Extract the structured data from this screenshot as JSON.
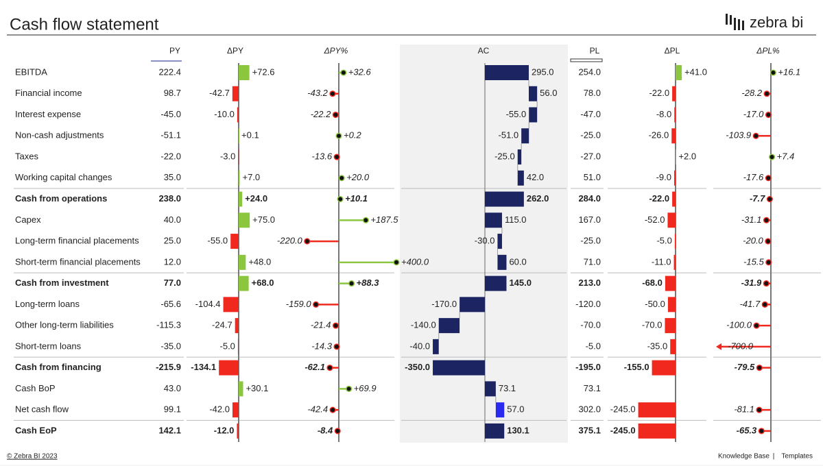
{
  "header": {
    "title": "Cash flow statement",
    "logo": "zebra bi"
  },
  "table": {
    "columns": [
      "PY",
      "ΔPY",
      "ΔPY%",
      "AC",
      "PL",
      "ΔPL",
      "ΔPL%"
    ],
    "rows": [
      {
        "label": "EBITDA",
        "kind": "item",
        "cells": [
          "222.4",
          "+72.6",
          "+32.6",
          "295.0",
          "254.0",
          "+41.0",
          "+16.1"
        ]
      },
      {
        "label": "Financial income",
        "kind": "item",
        "cells": [
          "98.7",
          "-42.7",
          "-43.2",
          "56.0",
          "78.0",
          "-22.0",
          "-28.2"
        ]
      },
      {
        "label": "Interest expense",
        "kind": "item",
        "cells": [
          "-45.0",
          "-10.0",
          "-22.2",
          "-55.0",
          "-47.0",
          "-8.0",
          "-17.0"
        ]
      },
      {
        "label": "Non-cash adjustments",
        "kind": "item",
        "cells": [
          "-51.1",
          "+0.1",
          "+0.2",
          "-51.0",
          "-25.0",
          "-26.0",
          "-103.9"
        ]
      },
      {
        "label": "Taxes",
        "kind": "item",
        "cells": [
          "-22.0",
          "-3.0",
          "-13.6",
          "-25.0",
          "-27.0",
          "+2.0",
          "+7.4"
        ]
      },
      {
        "label": "Working capital changes",
        "kind": "item",
        "cells": [
          "35.0",
          "+7.0",
          "+20.0",
          "42.0",
          "51.0",
          "-9.0",
          "-17.6"
        ]
      },
      {
        "label": "Cash from operations",
        "kind": "total",
        "cells": [
          "238.0",
          "+24.0",
          "+10.1",
          "262.0",
          "284.0",
          "-22.0",
          "-7.7"
        ]
      },
      {
        "label": "Capex",
        "kind": "item",
        "cells": [
          "40.0",
          "+75.0",
          "+187.5",
          "115.0",
          "167.0",
          "-52.0",
          "-31.1"
        ]
      },
      {
        "label": "Long-term financial placements",
        "kind": "item",
        "cells": [
          "25.0",
          "-55.0",
          "-220.0",
          "-30.0",
          "-25.0",
          "-5.0",
          "-20.0"
        ]
      },
      {
        "label": "Short-term financial placements",
        "kind": "item",
        "cells": [
          "12.0",
          "+48.0",
          "+400.0",
          "60.0",
          "71.0",
          "-11.0",
          "-15.5"
        ]
      },
      {
        "label": "Cash from investment",
        "kind": "total",
        "cells": [
          "77.0",
          "+68.0",
          "+88.3",
          "145.0",
          "213.0",
          "-68.0",
          "-31.9"
        ]
      },
      {
        "label": "Long-term loans",
        "kind": "item",
        "cells": [
          "-65.6",
          "-104.4",
          "-159.0",
          "-170.0",
          "-120.0",
          "-50.0",
          "-41.7"
        ]
      },
      {
        "label": "Other long-term liabilities",
        "kind": "item",
        "cells": [
          "-115.3",
          "-24.7",
          "-21.4",
          "-140.0",
          "-70.0",
          "-70.0",
          "-100.0"
        ]
      },
      {
        "label": "Short-term loans",
        "kind": "item",
        "cells": [
          "-35.0",
          "-5.0",
          "-14.3",
          "-40.0",
          "-5.0",
          "-35.0",
          "-700.0"
        ]
      },
      {
        "label": "Cash from financing",
        "kind": "total",
        "cells": [
          "-215.9",
          "-134.1",
          "-62.1",
          "-350.0",
          "-195.0",
          "-155.0",
          "-79.5"
        ]
      },
      {
        "label": "Cash BoP",
        "kind": "item",
        "cells": [
          "43.0",
          "+30.1",
          "+69.9",
          "73.1",
          "73.1",
          null,
          null
        ]
      },
      {
        "label": "Net cash flow",
        "kind": "highlight",
        "cells": [
          "99.1",
          "-42.0",
          "-42.4",
          "57.0",
          "302.0",
          "-245.0",
          "-81.1"
        ]
      },
      {
        "label": "Cash EoP",
        "kind": "total",
        "cells": [
          "142.1",
          "-12.0",
          "-8.4",
          "130.1",
          "375.1",
          "-245.0",
          "-65.3"
        ]
      }
    ]
  },
  "footer": {
    "copyright": "© Zebra BI 2023",
    "links": [
      "Knowledge Base",
      "Templates"
    ]
  }
}
